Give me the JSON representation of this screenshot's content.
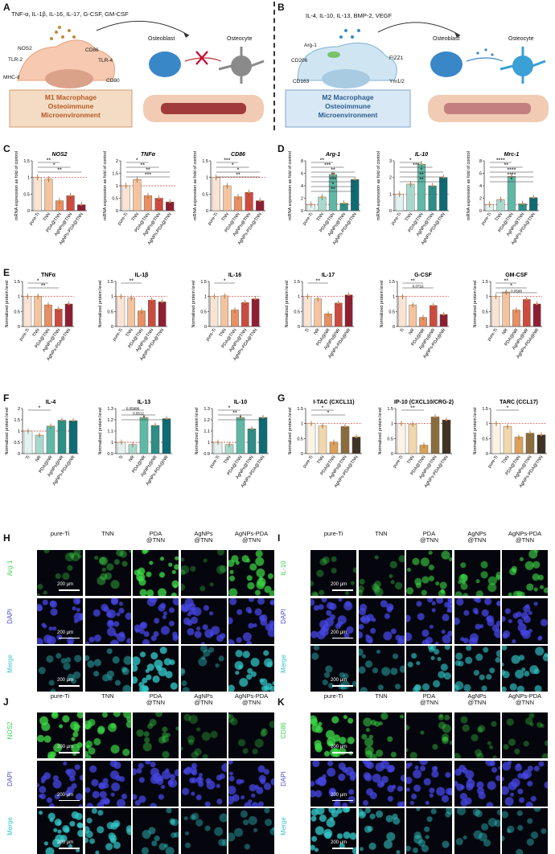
{
  "panels": {
    "A": {
      "label": "A",
      "cytokines": "TNF-α, IL-1β, IL-16, IL-17, G-CSF, GM-CSF",
      "markers": [
        "NOS2",
        "CD86",
        "TLR-2",
        "TLR-4",
        "CD80",
        "MHC-II"
      ],
      "osteoblast": "Osteoblast",
      "osteocyte": "Osteocyte",
      "box_title": [
        "M1 Macrophage",
        "Osteoimmune",
        "Microenvironment"
      ]
    },
    "B": {
      "label": "B",
      "cytokines": "IL-4, IL-10, IL-13, BMP-2, VEGF",
      "markers": [
        "Arg-1",
        "CD206",
        "FIZZ1",
        "CD163",
        "Ym1/2"
      ],
      "osteoblast": "Osteoblast",
      "osteocyte": "Osteocyte",
      "box_title": [
        "M2 Macrophage",
        "Osteoimmune",
        "Microenvironment"
      ]
    },
    "C": {
      "label": "C"
    },
    "D": {
      "label": "D"
    },
    "E": {
      "label": "E"
    },
    "F": {
      "label": "F"
    },
    "G": {
      "label": "G"
    },
    "H": {
      "label": "H",
      "marker": "Arg-1",
      "merge_color": "#2e9f8c"
    },
    "I": {
      "label": "I",
      "marker": "IL-10",
      "merge_color": "#2e9f8c"
    },
    "J": {
      "label": "J",
      "marker": "NOS2",
      "merge_color": "#2e9f8c"
    },
    "K": {
      "label": "K",
      "marker": "CD86",
      "merge_color": "#2e9f8c"
    }
  },
  "micrographs": {
    "columns": [
      "pure-Ti",
      "TNN",
      "PDA\n@TNN",
      "AgNPs\n@TNN",
      "AgNPs-PDA\n@TNN"
    ],
    "rows_prefix": [
      "",
      "DAPI",
      "Merge"
    ],
    "scale_bar": "200 μm",
    "brightness": {
      "H": [
        0.15,
        0.25,
        0.85,
        0.1,
        0.75
      ],
      "I": [
        0.15,
        0.2,
        0.55,
        0.5,
        0.6
      ],
      "J": [
        0.85,
        0.7,
        0.25,
        0.1,
        0.1
      ],
      "K": [
        0.85,
        0.45,
        0.25,
        0.15,
        0.15
      ]
    }
  },
  "chart_data": [
    {
      "type": "bar",
      "panel": "C",
      "title": "NOS2",
      "ylabel": "mRNA expression as fold of control",
      "categories": [
        "pure-Ti",
        "TNN",
        "PDA@TNN",
        "AgNPs@TNN",
        "AgNPs-PDA@TNN"
      ],
      "values": [
        1.0,
        0.95,
        0.3,
        0.45,
        0.18
      ],
      "ylim": [
        0,
        1.5
      ],
      "yticks": [
        0.0,
        0.5,
        1.0,
        1.5
      ],
      "colors": [
        "#fbe3d4",
        "#f4c49f",
        "#e88f63",
        "#cc4b3f",
        "#8e1f32"
      ],
      "sig": [
        "**",
        "*",
        "**"
      ]
    },
    {
      "type": "bar",
      "panel": "C",
      "title": "TNFα",
      "ylabel": "mRNA expression as fold of control",
      "categories": [
        "pure-Ti",
        "TNN",
        "PDA@TNN",
        "AgNPs@TNN",
        "AgNPs-PDA@TNN"
      ],
      "values": [
        1.0,
        1.25,
        0.6,
        0.5,
        0.35
      ],
      "ylim": [
        0,
        2.0
      ],
      "yticks": [
        0.0,
        0.5,
        1.0,
        1.5,
        2.0
      ],
      "colors": [
        "#fbe3d4",
        "#f4c49f",
        "#e88f63",
        "#cc4b3f",
        "#8e1f32"
      ],
      "sig": [
        "*",
        "**",
        "**",
        "***"
      ]
    },
    {
      "type": "bar",
      "panel": "C",
      "title": "CD86",
      "ylabel": "mRNA expression as fold of control",
      "categories": [
        "pure-Ti",
        "TNN",
        "PDA@TNN",
        "AgNPs@TNN",
        "AgNPs-PDA@TNN"
      ],
      "values": [
        1.0,
        0.75,
        0.42,
        0.55,
        0.3
      ],
      "ylim": [
        0,
        1.5
      ],
      "yticks": [
        0.0,
        0.5,
        1.0,
        1.5
      ],
      "colors": [
        "#fbe3d4",
        "#f4c49f",
        "#e88f63",
        "#cc4b3f",
        "#8e1f32"
      ],
      "sig": [
        "***",
        "*",
        "*",
        "**"
      ]
    },
    {
      "type": "bar",
      "panel": "D",
      "title": "Arg-1",
      "ylabel": "mRNA expression as fold of control",
      "categories": [
        "pure-Ti",
        "TNN",
        "PDA@TNN",
        "AgNPs@TNN",
        "AgNPs-PDA@TNN"
      ],
      "values": [
        1.0,
        2.2,
        5.8,
        1.2,
        5.0
      ],
      "ylim": [
        0,
        8
      ],
      "yticks": [
        0,
        2,
        4,
        6,
        8
      ],
      "colors": [
        "#e3f2ee",
        "#a8d8cc",
        "#5fb8a5",
        "#2c8e86",
        "#0e6b73"
      ],
      "sig": [
        "**",
        "***",
        "**",
        "**",
        "***",
        "*",
        "**"
      ]
    },
    {
      "type": "bar",
      "panel": "D",
      "title": "IL-10",
      "ylabel": "mRNA expression as fold of control",
      "categories": [
        "pure-Ti",
        "TNN",
        "PDA@TNN",
        "AgNPs@TNN",
        "AgNPs-PDA@TNN"
      ],
      "values": [
        1.0,
        1.6,
        2.8,
        1.5,
        2.0
      ],
      "ylim": [
        0,
        3
      ],
      "yticks": [
        0,
        1,
        2,
        3
      ],
      "colors": [
        "#e3f2ee",
        "#a8d8cc",
        "#5fb8a5",
        "#2c8e86",
        "#0e6b73"
      ],
      "sig": [
        "*",
        "***",
        "*",
        "**",
        "**"
      ]
    },
    {
      "type": "bar",
      "panel": "D",
      "title": "Mrc-1",
      "ylabel": "mRNA expression as fold of control",
      "categories": [
        "pure-Ti",
        "TNN",
        "PDA@TNN",
        "AgNPs@TNN",
        "AgNPs-PDA@TNN"
      ],
      "values": [
        1.0,
        1.8,
        5.5,
        1.1,
        2.1
      ],
      "ylim": [
        0,
        8
      ],
      "yticks": [
        0,
        2,
        4,
        6,
        8
      ],
      "colors": [
        "#e3f2ee",
        "#a8d8cc",
        "#5fb8a5",
        "#2c8e86",
        "#0e6b73"
      ],
      "sig": [
        "****",
        "**",
        "****",
        "****",
        "*"
      ]
    },
    {
      "type": "bar",
      "panel": "E",
      "title": "TNFα",
      "ylabel": "Normalized protein level",
      "categories": [
        "pure-Ti",
        "TNN",
        "PDA@TNN",
        "AgNPs@TNN",
        "AgNPs-PDA@TNN"
      ],
      "values": [
        1.0,
        1.01,
        0.72,
        0.58,
        0.75
      ],
      "ylim": [
        0,
        1.5
      ],
      "yticks": [
        0.0,
        0.5,
        1.0,
        1.5
      ],
      "colors": [
        "#fbe3d4",
        "#f4c49f",
        "#e88f63",
        "#cc4b3f",
        "#8e1f32"
      ],
      "sig": [
        "*",
        "**"
      ]
    },
    {
      "type": "bar",
      "panel": "E",
      "title": "IL-1β",
      "ylabel": "Normalized protein level",
      "categories": [
        "pure-Ti",
        "TNN",
        "PDA@TNN",
        "AgNPs@TNN",
        "AgNPs-PDA@TNN"
      ],
      "values": [
        1.0,
        0.95,
        0.52,
        0.88,
        0.82
      ],
      "ylim": [
        0,
        1.5
      ],
      "yticks": [
        0.0,
        0.5,
        1.0,
        1.5
      ],
      "colors": [
        "#fbe3d4",
        "#f4c49f",
        "#e88f63",
        "#cc4b3f",
        "#8e1f32"
      ],
      "sig": [
        "**"
      ]
    },
    {
      "type": "bar",
      "panel": "E",
      "title": "IL-16",
      "ylabel": "Normalized protein level",
      "categories": [
        "pure-Ti",
        "TNN",
        "PDA@TNN",
        "AgNPs@TNN",
        "AgNPs-PDA@TNN"
      ],
      "values": [
        1.0,
        1.02,
        0.55,
        0.8,
        0.92
      ],
      "ylim": [
        0,
        1.5
      ],
      "yticks": [
        0.0,
        0.5,
        1.0,
        1.5
      ],
      "colors": [
        "#fbe3d4",
        "#f4c49f",
        "#e88f63",
        "#cc4b3f",
        "#8e1f32"
      ],
      "sig": [
        "*"
      ]
    },
    {
      "type": "bar",
      "panel": "E",
      "title": "IL-17",
      "ylabel": "Normalized protein level",
      "categories": [
        "Ti",
        "NR",
        "PDA@NR",
        "AgNPs@NR",
        "AgNPs-PDA@NR"
      ],
      "values": [
        1.0,
        0.92,
        0.42,
        0.78,
        1.05
      ],
      "ylim": [
        0,
        1.5
      ],
      "yticks": [
        0.0,
        0.5,
        1.0,
        1.5
      ],
      "colors": [
        "#fbe3d4",
        "#f4c49f",
        "#e88f63",
        "#cc4b3f",
        "#8e1f32"
      ],
      "sig": [
        "**"
      ]
    },
    {
      "type": "bar",
      "panel": "E",
      "title": "G-CSF",
      "ylabel": "Normalized protein level",
      "categories": [
        "Ti",
        "NR",
        "PDA@NR",
        "AgNPs@NR",
        "AgNPs-PDA@NR"
      ],
      "values": [
        1.0,
        0.72,
        0.3,
        0.7,
        0.4
      ],
      "ylim": [
        0,
        1.5
      ],
      "yticks": [
        0.0,
        0.5,
        1.0,
        1.5
      ],
      "colors": [
        "#fbe3d4",
        "#f4c49f",
        "#e88f63",
        "#cc4b3f",
        "#8e1f32"
      ],
      "sig": [
        "**",
        "0.0716"
      ]
    },
    {
      "type": "bar",
      "panel": "E",
      "title": "GM-CSF",
      "ylabel": "Normalized protein level",
      "categories": [
        "pure-Ti",
        "NR",
        "PDA@NR",
        "AgNPs@NR",
        "AgNPs-PDA@NR"
      ],
      "values": [
        1.0,
        1.15,
        0.55,
        0.9,
        0.75
      ],
      "ylim": [
        0,
        1.5
      ],
      "yticks": [
        0.0,
        0.5,
        1.0,
        1.5
      ],
      "colors": [
        "#fbe3d4",
        "#f4c49f",
        "#e88f63",
        "#cc4b3f",
        "#8e1f32"
      ],
      "sig": [
        "**",
        "*",
        "0.0588"
      ]
    },
    {
      "type": "bar",
      "panel": "F",
      "title": "IL-4",
      "ylabel": "Normalized protein level",
      "categories": [
        "Ti",
        "NR",
        "PDA@NR",
        "AgNPs@NR",
        "AgNPs-PDA@NR"
      ],
      "values": [
        1.0,
        0.82,
        1.22,
        1.48,
        1.46
      ],
      "ylim": [
        0,
        2.0
      ],
      "yticks": [
        0.0,
        0.5,
        1.0,
        1.5,
        2.0
      ],
      "colors": [
        "#e3f2ee",
        "#a8d8cc",
        "#5fb8a5",
        "#2c8e86",
        "#0e6b73"
      ],
      "sig": [
        "*"
      ]
    },
    {
      "type": "bar",
      "panel": "F",
      "title": "IL-13",
      "ylabel": "Normalized protein level",
      "categories": [
        "Ti",
        "NR",
        "PDA@NR",
        "AgNPs@NR",
        "AgNPs-PDA@NR"
      ],
      "values": [
        1.0,
        0.98,
        1.22,
        1.15,
        1.21
      ],
      "ylim": [
        0.9,
        1.3
      ],
      "yticks": [
        0.9,
        1.0,
        1.1,
        1.2,
        1.3
      ],
      "colors": [
        "#e3f2ee",
        "#a8d8cc",
        "#5fb8a5",
        "#2c8e86",
        "#0e6b73"
      ],
      "sig": [
        "0.05998",
        "0.0512",
        "*"
      ]
    },
    {
      "type": "bar",
      "panel": "F",
      "title": "IL-10",
      "ylabel": "Normalized protein level",
      "categories": [
        "pure-Ti",
        "TNN",
        "PDA@TNN",
        "AgNPs@TNN",
        "AgNPs-PDA@TNN"
      ],
      "values": [
        1.0,
        0.98,
        1.22,
        1.12,
        1.22
      ],
      "ylim": [
        0.9,
        1.3
      ],
      "yticks": [
        0.9,
        1.0,
        1.1,
        1.2,
        1.3
      ],
      "colors": [
        "#e3f2ee",
        "#a8d8cc",
        "#5fb8a5",
        "#2c8e86",
        "#0e6b73"
      ],
      "sig": [
        "*",
        "**",
        "*"
      ]
    },
    {
      "type": "bar",
      "panel": "G",
      "title": "I-TAC (CXCL11)",
      "ylabel": "Normalized protein level",
      "categories": [
        "pure-Ti",
        "TNN",
        "PDA@TNN",
        "AgNPs@TNN",
        "AgNPs-PDA@TNN"
      ],
      "values": [
        1.0,
        0.92,
        0.38,
        0.9,
        0.55
      ],
      "ylim": [
        0,
        1.5
      ],
      "yticks": [
        0.0,
        0.5,
        1.0,
        1.5
      ],
      "colors": [
        "#fbf3e6",
        "#f1d7ad",
        "#d9a15a",
        "#8a6d3f",
        "#3f3325"
      ],
      "sig": [
        "*",
        "*"
      ]
    },
    {
      "type": "bar",
      "panel": "G",
      "title": "IP-10 (CXCL10/CRG-2)",
      "ylabel": "Normalized protein level",
      "categories": [
        "pure-Ti",
        "TNN",
        "PDA@TNN",
        "AgNPs@TNN",
        "AgNPs-PDA@TNN"
      ],
      "values": [
        1.0,
        0.98,
        0.28,
        1.22,
        1.12
      ],
      "ylim": [
        0,
        1.5
      ],
      "yticks": [
        0.0,
        0.5,
        1.0,
        1.5
      ],
      "colors": [
        "#fbf3e6",
        "#f1d7ad",
        "#d9a15a",
        "#8a6d3f",
        "#3f3325"
      ],
      "sig": [
        "**"
      ]
    },
    {
      "type": "bar",
      "panel": "G",
      "title": "TARC (CCL17)",
      "ylabel": "Normalized protein level",
      "categories": [
        "pure-Ti",
        "TNN",
        "PDA@TNN",
        "AgNPs@TNN",
        "AgNPs-PDA@TNN"
      ],
      "values": [
        1.0,
        0.9,
        0.55,
        0.68,
        0.62
      ],
      "ylim": [
        0,
        1.5
      ],
      "yticks": [
        0.0,
        0.5,
        1.0,
        1.5
      ],
      "colors": [
        "#fbf3e6",
        "#f1d7ad",
        "#d9a15a",
        "#8a6d3f",
        "#3f3325"
      ],
      "sig": [
        "*"
      ]
    }
  ]
}
